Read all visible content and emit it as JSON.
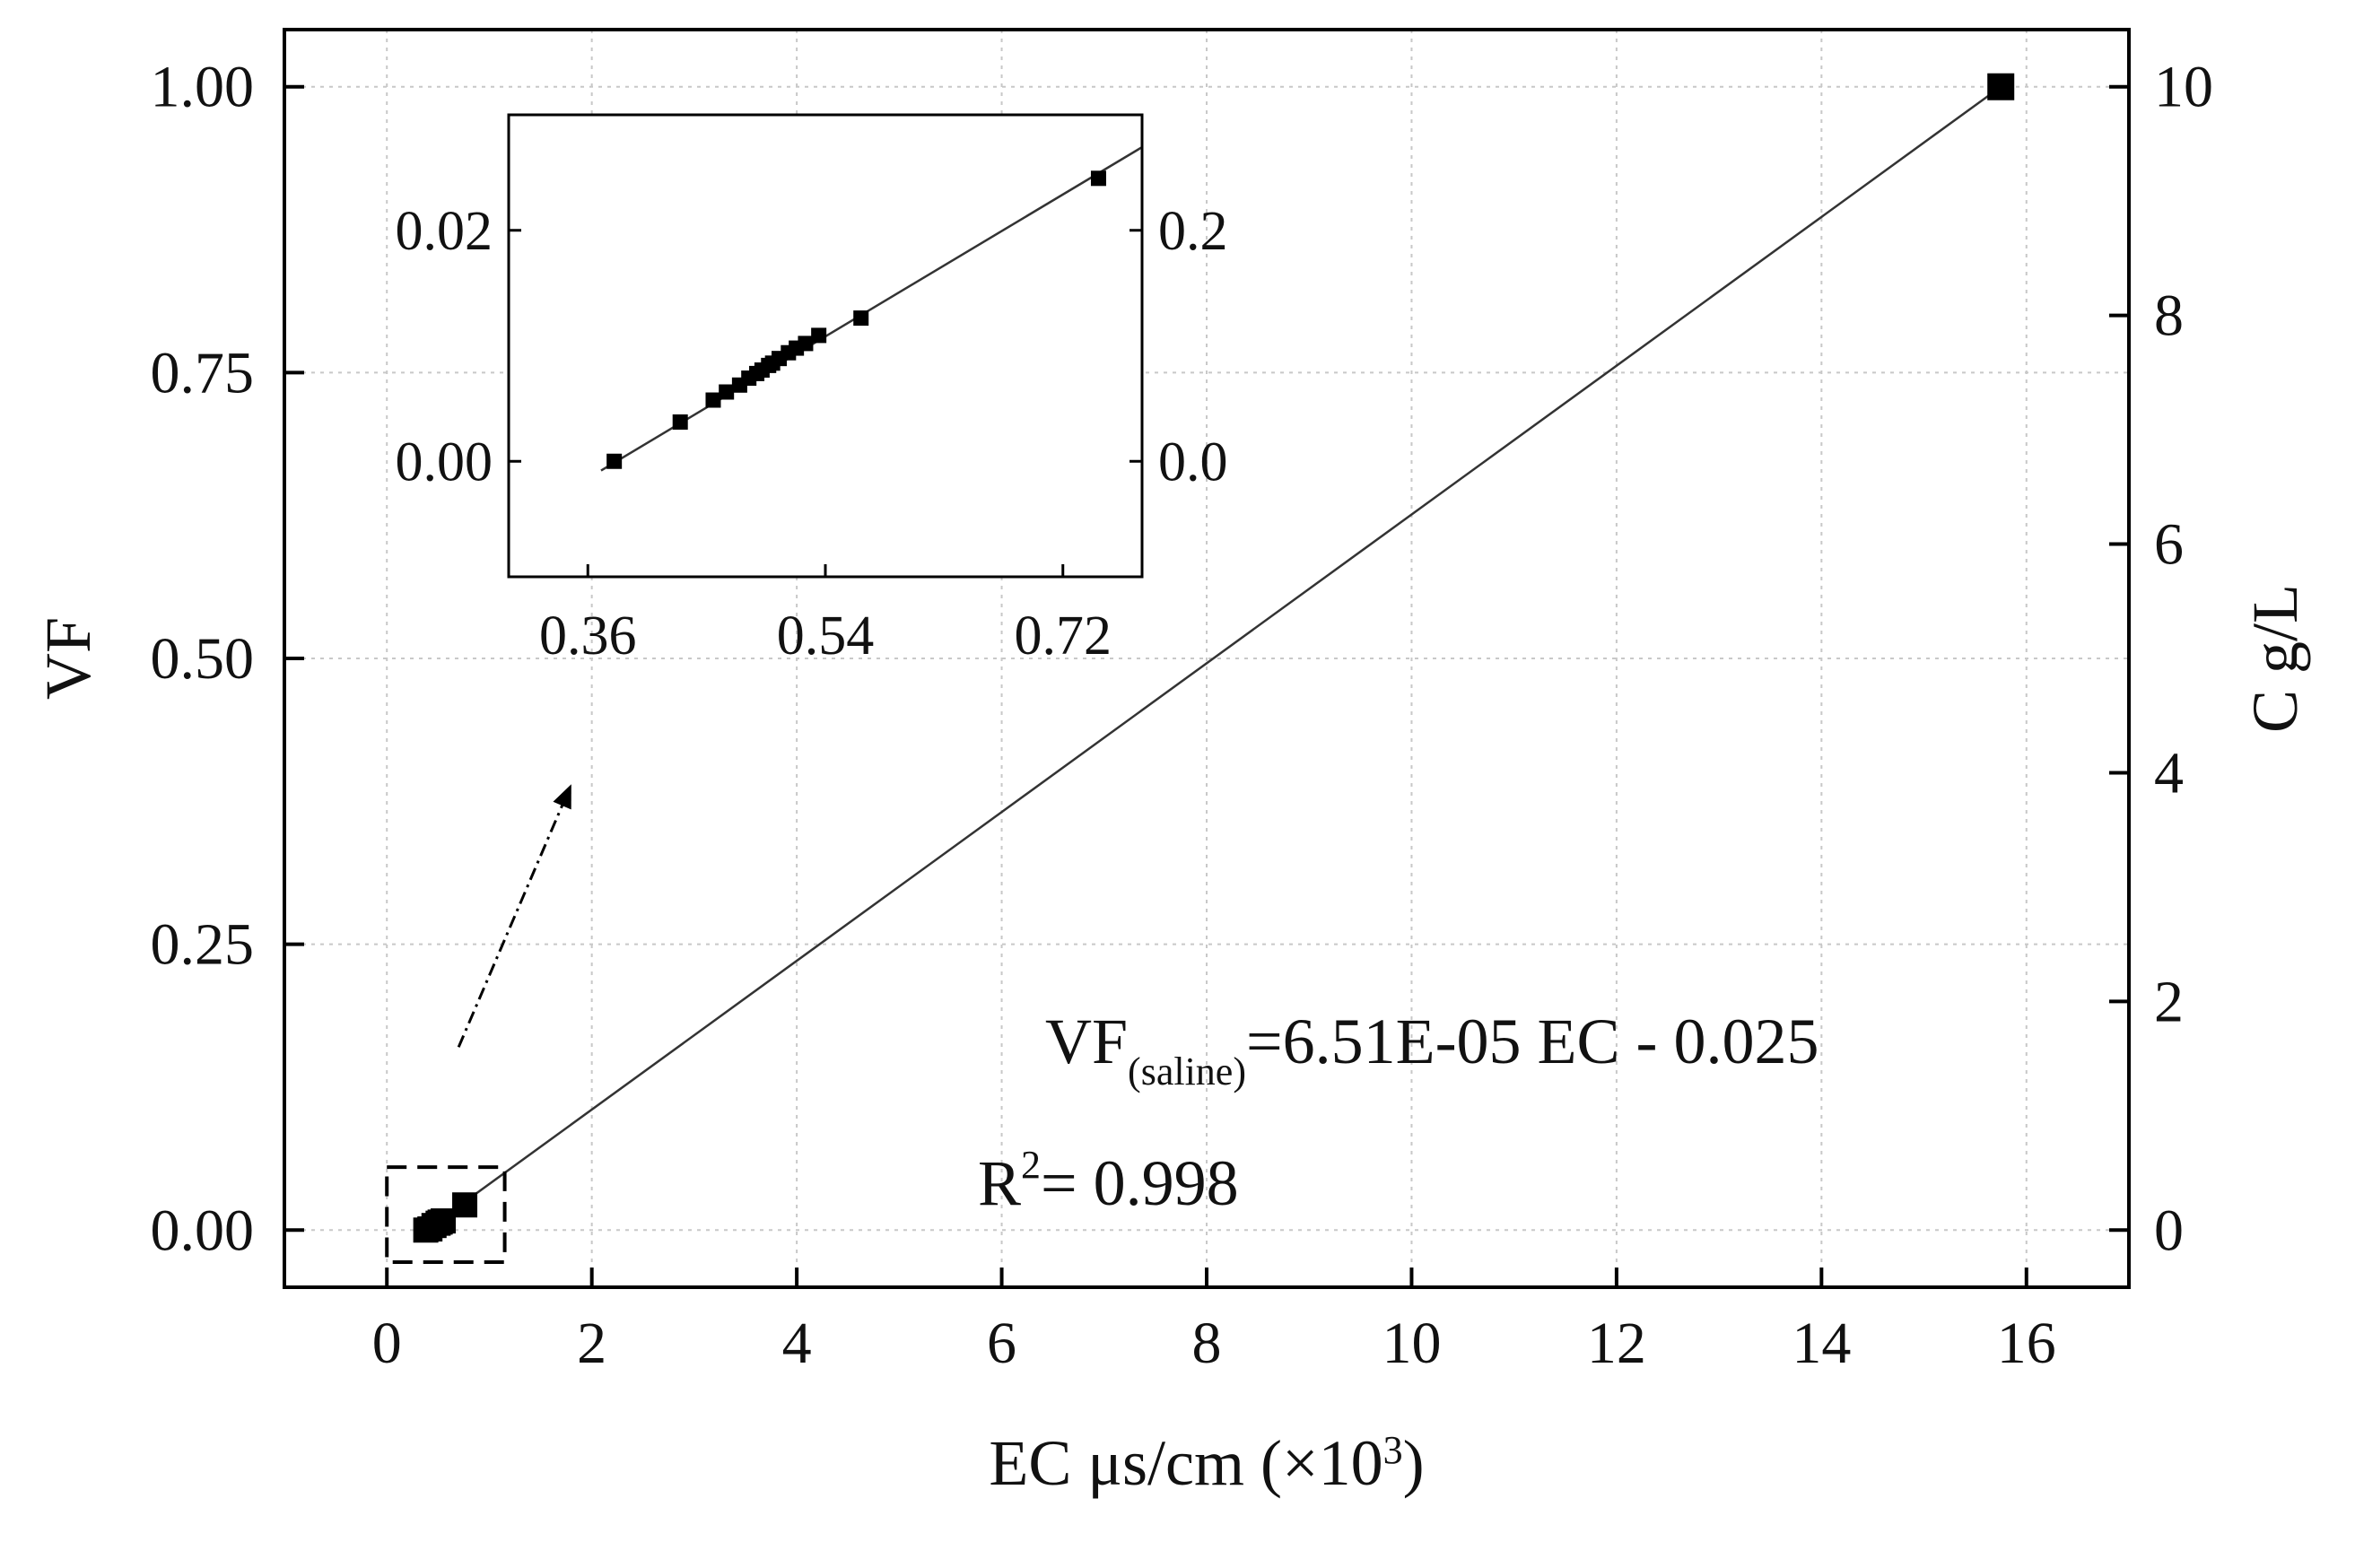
{
  "chart_data": [
    {
      "type": "scatter",
      "title": "",
      "xlabel": "EC μs/cm (×10",
      "xlabel_sup": "3",
      "xlabel_close": ")",
      "ylabel": "VF",
      "y2label": "C g/L",
      "xlim": [
        -1,
        17
      ],
      "ylim": [
        -0.05,
        1.05
      ],
      "y2lim": [
        -0.5,
        10.5
      ],
      "xticks": [
        0,
        2,
        4,
        6,
        8,
        10,
        12,
        14,
        16
      ],
      "xtick_labels": [
        "0",
        "2",
        "4",
        "6",
        "8",
        "10",
        "12",
        "14",
        "16"
      ],
      "yticks": [
        0,
        0.25,
        0.5,
        0.75,
        1.0
      ],
      "ytick_labels": [
        "0.00",
        "0.25",
        "0.50",
        "0.75",
        "1.00"
      ],
      "y2ticks": [
        0,
        2,
        4,
        6,
        8,
        10
      ],
      "y2tick_labels": [
        "0",
        "2",
        "4",
        "6",
        "8",
        "10"
      ],
      "grid": true,
      "series": [
        {
          "x": [
            0.38,
            0.42,
            0.46,
            0.5,
            0.52,
            0.55,
            0.76,
            15.75
          ],
          "y": [
            0.0,
            0.001,
            0.004,
            0.006,
            0.007,
            0.008,
            0.022,
            1.0
          ],
          "marker": "square",
          "color": "#000000"
        }
      ],
      "fit_line": {
        "x": [
          0.38,
          15.75
        ],
        "y": [
          0.0,
          1.0
        ],
        "color": "#333333"
      },
      "annotations": {
        "equation_main": "VF",
        "equation_sub": "(saline)",
        "equation_rest": "=6.51E-05 EC - 0.025",
        "r2_main": "R",
        "r2_sup": "2",
        "r2_rest": "= 0.998"
      },
      "highlight_box": {
        "x": [
          0.0,
          1.15
        ],
        "y": [
          -0.028,
          0.055
        ]
      },
      "arrow": {
        "from": [
          0.7,
          0.16
        ],
        "to": [
          1.8,
          0.39
        ]
      }
    },
    {
      "type": "scatter",
      "title": "",
      "xlabel": "",
      "ylabel": "",
      "xlim": [
        0.3,
        0.78
      ],
      "ylim": [
        -0.01,
        0.03
      ],
      "y2lim": [
        -0.1,
        0.3
      ],
      "xticks": [
        0.36,
        0.54,
        0.72
      ],
      "xtick_labels": [
        "0.36",
        "0.54",
        "0.72"
      ],
      "yticks": [
        0.0,
        0.02
      ],
      "ytick_labels": [
        "0.00",
        "0.02"
      ],
      "y2ticks": [
        0.0,
        0.2
      ],
      "y2tick_labels": [
        "0.0",
        "0.2"
      ],
      "grid": false,
      "series": [
        {
          "x": [
            0.38,
            0.43,
            0.455,
            0.465,
            0.475,
            0.482,
            0.488,
            0.492,
            0.497,
            0.5,
            0.505,
            0.512,
            0.518,
            0.525,
            0.535,
            0.567,
            0.747
          ],
          "y": [
            0.0,
            0.0034,
            0.0053,
            0.006,
            0.0066,
            0.0072,
            0.0076,
            0.0079,
            0.0083,
            0.0085,
            0.0089,
            0.0094,
            0.0098,
            0.0102,
            0.0109,
            0.0124,
            0.0245
          ],
          "marker": "square",
          "color": "#000000"
        }
      ],
      "fit_line": {
        "x": [
          0.37,
          0.78
        ],
        "y": [
          -0.0008,
          0.0272
        ],
        "color": "#333333"
      }
    }
  ]
}
